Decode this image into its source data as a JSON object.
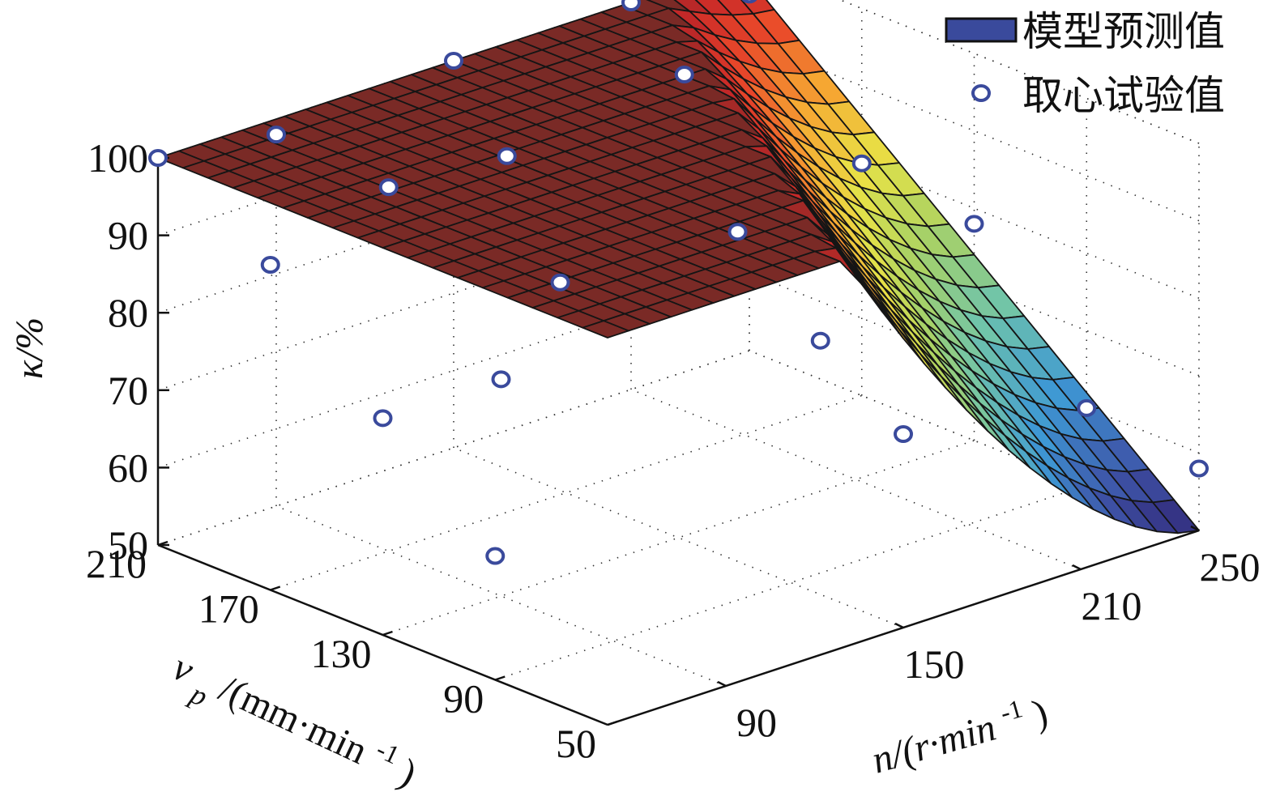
{
  "chart_data": {
    "type": "surface",
    "x_axis": {
      "label": "n/(r·min",
      "label_sup": "-1",
      "label_close": ")",
      "ticks": [
        90,
        150,
        210,
        250
      ],
      "range": [
        50,
        250
      ]
    },
    "y_axis": {
      "label_main": "v",
      "label_sub": "p",
      "label_rest": "/(mm·min",
      "label_sup": "-1",
      "label_close": ")",
      "ticks": [
        50,
        90,
        130,
        170,
        210
      ],
      "range": [
        50,
        210
      ]
    },
    "z_axis": {
      "label": "κ/%",
      "ticks": [
        50,
        60,
        70,
        80,
        90,
        100
      ],
      "range": [
        50,
        100
      ]
    },
    "grid": true,
    "legend": {
      "position": "top-right",
      "entries": [
        "模型预测值",
        "取心试验值"
      ]
    },
    "series": [
      {
        "name": "模型预测值",
        "kind": "surface",
        "colormap": "parula-like",
        "plateau": 100,
        "minimum": 50
      },
      {
        "name": "取心试验值",
        "kind": "scatter",
        "points": [
          [
            50,
            210,
            100
          ],
          [
            50,
            170,
            92
          ],
          [
            50,
            130,
            78
          ],
          [
            50,
            90,
            66
          ],
          [
            90,
            210,
            98
          ],
          [
            90,
            170,
            97
          ],
          [
            90,
            130,
            78
          ],
          [
            150,
            210,
            100
          ],
          [
            130,
            170,
            96
          ],
          [
            110,
            130,
            88
          ],
          [
            210,
            210,
            100
          ],
          [
            190,
            170,
            99
          ],
          [
            170,
            130,
            87
          ],
          [
            160,
            90,
            80
          ],
          [
            150,
            50,
            75
          ],
          [
            250,
            210,
            96
          ],
          [
            250,
            170,
            80
          ],
          [
            250,
            130,
            78
          ],
          [
            250,
            90,
            60
          ],
          [
            250,
            50,
            58
          ]
        ]
      }
    ]
  }
}
